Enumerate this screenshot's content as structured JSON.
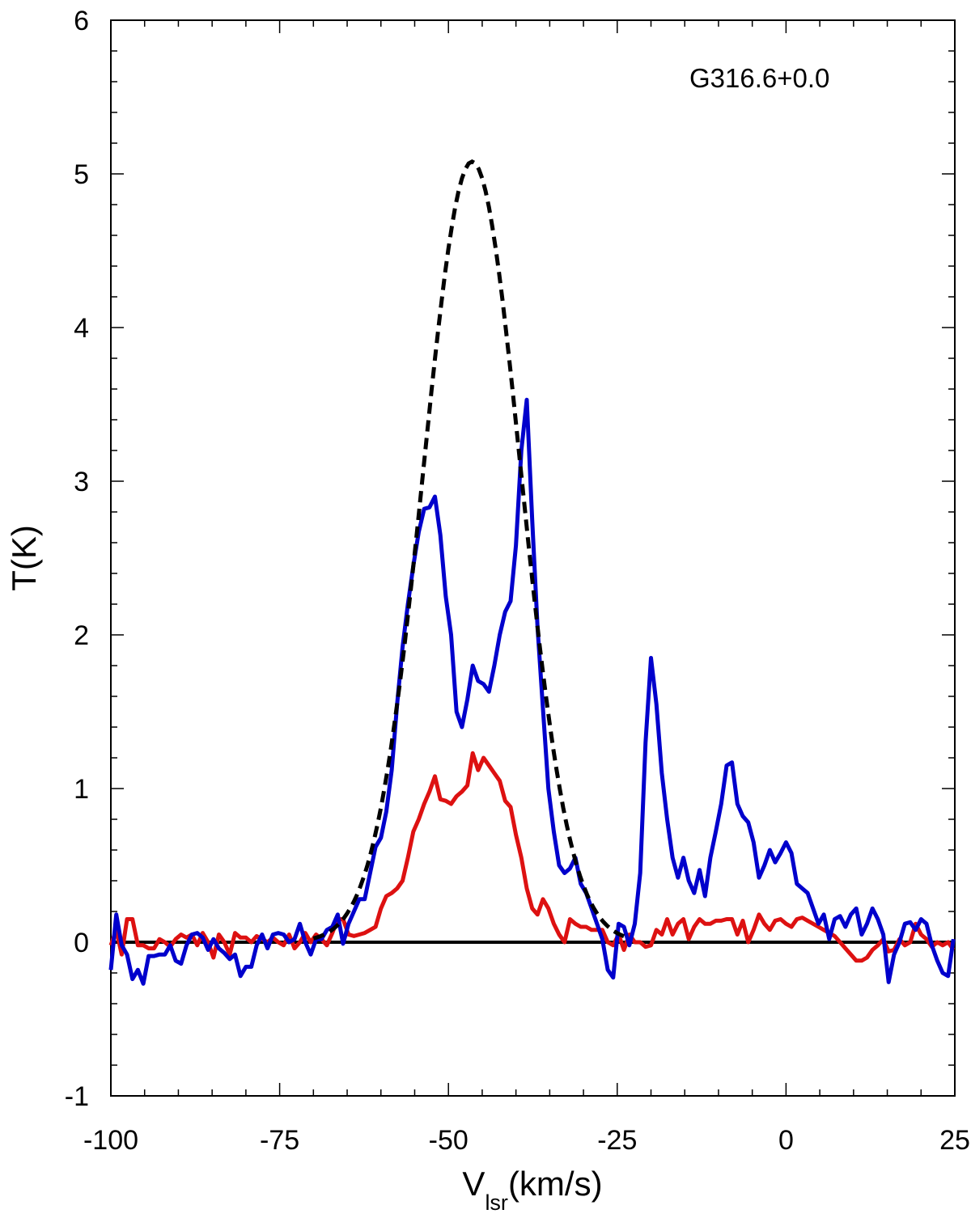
{
  "chart_data": {
    "type": "line",
    "annotation": "G316.6+0.0",
    "xlabel_main": "V",
    "xlabel_sub": "lsr",
    "xlabel_unit": "(km/s)",
    "ylabel": "T(K)",
    "xlim": [
      -100,
      25
    ],
    "ylim": [
      -1,
      6
    ],
    "x_ticks": [
      -100,
      -75,
      -50,
      -25,
      0,
      25
    ],
    "y_ticks": [
      -1,
      0,
      1,
      2,
      3,
      4,
      5,
      6
    ],
    "grid": false,
    "colors": {
      "blue": "#0000cc",
      "red": "#dd1111",
      "fit": "#000000",
      "baseline": "#000000"
    },
    "series": [
      {
        "style": "solid",
        "color": "#0000cc",
        "points": [
          [
            -100,
            -0.18
          ],
          [
            -99.2,
            0.18
          ],
          [
            -98.4,
            -0.02
          ],
          [
            -97.6,
            -0.08
          ],
          [
            -96.8,
            -0.24
          ],
          [
            -96,
            -0.18
          ],
          [
            -95.2,
            -0.27
          ],
          [
            -94.4,
            -0.09
          ],
          [
            -93.6,
            -0.09
          ],
          [
            -92.8,
            -0.08
          ],
          [
            -92,
            -0.08
          ],
          [
            -91.2,
            -0.02
          ],
          [
            -90.4,
            -0.12
          ],
          [
            -89.6,
            -0.14
          ],
          [
            -88.8,
            -0.02
          ],
          [
            -88,
            0.05
          ],
          [
            -87.2,
            0.06
          ],
          [
            -86.4,
            0.03
          ],
          [
            -85.6,
            -0.05
          ],
          [
            -84.8,
            0.02
          ],
          [
            -84,
            -0.04
          ],
          [
            -83.2,
            -0.07
          ],
          [
            -82.4,
            -0.11
          ],
          [
            -81.6,
            -0.08
          ],
          [
            -80.8,
            -0.22
          ],
          [
            -80,
            -0.16
          ],
          [
            -79.2,
            -0.16
          ],
          [
            -78.4,
            -0.02
          ],
          [
            -77.6,
            0.05
          ],
          [
            -76.8,
            -0.04
          ],
          [
            -76,
            0.05
          ],
          [
            -75.2,
            0.06
          ],
          [
            -74.4,
            0.05
          ],
          [
            -73.6,
            0.0
          ],
          [
            -72.8,
            0.02
          ],
          [
            -72,
            0.12
          ],
          [
            -71.2,
            0.0
          ],
          [
            -70.4,
            -0.08
          ],
          [
            -69.6,
            0.02
          ],
          [
            -68.8,
            0.02
          ],
          [
            -68,
            0.08
          ],
          [
            -67.2,
            0.1
          ],
          [
            -66.4,
            0.18
          ],
          [
            -65.6,
            -0.01
          ],
          [
            -64.8,
            0.12
          ],
          [
            -64,
            0.2
          ],
          [
            -63.2,
            0.28
          ],
          [
            -62.4,
            0.28
          ],
          [
            -61.6,
            0.45
          ],
          [
            -60.8,
            0.62
          ],
          [
            -60,
            0.68
          ],
          [
            -59.2,
            0.85
          ],
          [
            -58.4,
            1.12
          ],
          [
            -57.6,
            1.55
          ],
          [
            -56.8,
            1.92
          ],
          [
            -56,
            2.2
          ],
          [
            -55.2,
            2.45
          ],
          [
            -54.4,
            2.67
          ],
          [
            -53.6,
            2.82
          ],
          [
            -52.8,
            2.83
          ],
          [
            -52,
            2.9
          ],
          [
            -51.2,
            2.65
          ],
          [
            -50.4,
            2.25
          ],
          [
            -49.6,
            2.0
          ],
          [
            -48.8,
            1.5
          ],
          [
            -48,
            1.4
          ],
          [
            -47.2,
            1.58
          ],
          [
            -46.4,
            1.8
          ],
          [
            -45.6,
            1.7
          ],
          [
            -44.8,
            1.68
          ],
          [
            -44,
            1.63
          ],
          [
            -43.2,
            1.8
          ],
          [
            -42.4,
            2.0
          ],
          [
            -41.6,
            2.15
          ],
          [
            -40.8,
            2.22
          ],
          [
            -40,
            2.58
          ],
          [
            -39.2,
            3.2
          ],
          [
            -38.4,
            3.53
          ],
          [
            -37.6,
            2.75
          ],
          [
            -36.8,
            2.05
          ],
          [
            -36,
            1.52
          ],
          [
            -35.2,
            1.0
          ],
          [
            -34.4,
            0.72
          ],
          [
            -33.6,
            0.5
          ],
          [
            -32.8,
            0.45
          ],
          [
            -32,
            0.48
          ],
          [
            -31.2,
            0.55
          ],
          [
            -30.4,
            0.38
          ],
          [
            -29.6,
            0.32
          ],
          [
            -28.8,
            0.22
          ],
          [
            -28,
            0.12
          ],
          [
            -27.2,
            0.02
          ],
          [
            -26.4,
            -0.18
          ],
          [
            -25.6,
            -0.23
          ],
          [
            -24.8,
            0.12
          ],
          [
            -24,
            0.1
          ],
          [
            -23.2,
            -0.02
          ],
          [
            -22.4,
            0.12
          ],
          [
            -21.6,
            0.45
          ],
          [
            -20.8,
            1.3
          ],
          [
            -20,
            1.85
          ],
          [
            -19.2,
            1.55
          ],
          [
            -18.4,
            1.1
          ],
          [
            -17.6,
            0.8
          ],
          [
            -16.8,
            0.55
          ],
          [
            -16,
            0.42
          ],
          [
            -15.2,
            0.55
          ],
          [
            -14.4,
            0.4
          ],
          [
            -13.6,
            0.32
          ],
          [
            -12.8,
            0.47
          ],
          [
            -12,
            0.3
          ],
          [
            -11.2,
            0.55
          ],
          [
            -10.4,
            0.72
          ],
          [
            -9.6,
            0.9
          ],
          [
            -8.8,
            1.15
          ],
          [
            -8,
            1.17
          ],
          [
            -7.2,
            0.9
          ],
          [
            -6.4,
            0.82
          ],
          [
            -5.6,
            0.78
          ],
          [
            -4.8,
            0.65
          ],
          [
            -4,
            0.42
          ],
          [
            -3.2,
            0.5
          ],
          [
            -2.4,
            0.6
          ],
          [
            -1.6,
            0.52
          ],
          [
            -0.8,
            0.58
          ],
          [
            0,
            0.65
          ],
          [
            0.8,
            0.58
          ],
          [
            1.6,
            0.38
          ],
          [
            2.4,
            0.35
          ],
          [
            3.2,
            0.32
          ],
          [
            4,
            0.22
          ],
          [
            4.8,
            0.12
          ],
          [
            5.6,
            0.18
          ],
          [
            6.4,
            0.02
          ],
          [
            7.2,
            0.15
          ],
          [
            8,
            0.17
          ],
          [
            8.8,
            0.1
          ],
          [
            9.6,
            0.18
          ],
          [
            10.4,
            0.22
          ],
          [
            11.2,
            0.05
          ],
          [
            12,
            0.12
          ],
          [
            12.8,
            0.22
          ],
          [
            13.6,
            0.15
          ],
          [
            14.4,
            0.05
          ],
          [
            15.2,
            -0.26
          ],
          [
            16,
            -0.08
          ],
          [
            16.8,
            0.0
          ],
          [
            17.6,
            0.12
          ],
          [
            18.4,
            0.13
          ],
          [
            19.2,
            0.08
          ],
          [
            20,
            0.15
          ],
          [
            20.8,
            0.12
          ],
          [
            21.6,
            -0.02
          ],
          [
            22.4,
            -0.12
          ],
          [
            23.2,
            -0.2
          ],
          [
            24,
            -0.22
          ],
          [
            24.8,
            0.02
          ]
        ]
      },
      {
        "style": "solid",
        "color": "#dd1111",
        "points": [
          [
            -100,
            -0.02
          ],
          [
            -99.2,
            0.08
          ],
          [
            -98.4,
            -0.08
          ],
          [
            -97.6,
            0.15
          ],
          [
            -96.8,
            0.15
          ],
          [
            -96,
            -0.02
          ],
          [
            -95.2,
            -0.02
          ],
          [
            -94.4,
            -0.04
          ],
          [
            -93.6,
            -0.04
          ],
          [
            -92.8,
            0.02
          ],
          [
            -92,
            0.0
          ],
          [
            -91.2,
            -0.03
          ],
          [
            -90.4,
            0.02
          ],
          [
            -89.6,
            0.05
          ],
          [
            -88.8,
            0.03
          ],
          [
            -88,
            0.05
          ],
          [
            -87.2,
            -0.02
          ],
          [
            -86.4,
            0.06
          ],
          [
            -85.6,
            0.0
          ],
          [
            -84.8,
            -0.1
          ],
          [
            -84,
            0.05
          ],
          [
            -83.2,
            0.0
          ],
          [
            -82.4,
            -0.08
          ],
          [
            -81.6,
            0.06
          ],
          [
            -80.8,
            0.03
          ],
          [
            -80,
            0.03
          ],
          [
            -79.2,
            0.0
          ],
          [
            -78.4,
            0.04
          ],
          [
            -77.6,
            0.02
          ],
          [
            -76.8,
            0.0
          ],
          [
            -76,
            0.03
          ],
          [
            -75.2,
            0.0
          ],
          [
            -74.4,
            -0.02
          ],
          [
            -73.6,
            0.05
          ],
          [
            -72.8,
            -0.04
          ],
          [
            -72,
            0.0
          ],
          [
            -71.2,
            0.06
          ],
          [
            -70.4,
            0.0
          ],
          [
            -69.6,
            0.05
          ],
          [
            -68.8,
            0.02
          ],
          [
            -68,
            -0.02
          ],
          [
            -67.2,
            0.06
          ],
          [
            -66.4,
            0.15
          ],
          [
            -65.6,
            0.15
          ],
          [
            -64.8,
            0.05
          ],
          [
            -64,
            0.04
          ],
          [
            -63.2,
            0.05
          ],
          [
            -62.4,
            0.06
          ],
          [
            -61.6,
            0.08
          ],
          [
            -60.8,
            0.1
          ],
          [
            -60,
            0.22
          ],
          [
            -59.2,
            0.3
          ],
          [
            -58.4,
            0.32
          ],
          [
            -57.6,
            0.35
          ],
          [
            -56.8,
            0.4
          ],
          [
            -56,
            0.55
          ],
          [
            -55.2,
            0.72
          ],
          [
            -54.4,
            0.8
          ],
          [
            -53.6,
            0.9
          ],
          [
            -52.8,
            0.98
          ],
          [
            -52,
            1.08
          ],
          [
            -51.2,
            0.93
          ],
          [
            -50.4,
            0.92
          ],
          [
            -49.6,
            0.9
          ],
          [
            -48.8,
            0.95
          ],
          [
            -48,
            0.98
          ],
          [
            -47.2,
            1.02
          ],
          [
            -46.4,
            1.23
          ],
          [
            -45.6,
            1.12
          ],
          [
            -44.8,
            1.2
          ],
          [
            -44,
            1.15
          ],
          [
            -43.2,
            1.1
          ],
          [
            -42.4,
            1.05
          ],
          [
            -41.6,
            0.92
          ],
          [
            -40.8,
            0.88
          ],
          [
            -40,
            0.7
          ],
          [
            -39.2,
            0.55
          ],
          [
            -38.4,
            0.35
          ],
          [
            -37.6,
            0.22
          ],
          [
            -36.8,
            0.18
          ],
          [
            -36,
            0.28
          ],
          [
            -35.2,
            0.22
          ],
          [
            -34.4,
            0.12
          ],
          [
            -33.6,
            0.05
          ],
          [
            -32.8,
            0.0
          ],
          [
            -32,
            0.15
          ],
          [
            -31.2,
            0.12
          ],
          [
            -30.4,
            0.1
          ],
          [
            -29.6,
            0.1
          ],
          [
            -28.8,
            0.08
          ],
          [
            -28,
            0.08
          ],
          [
            -27.2,
            0.08
          ],
          [
            -26.4,
            0.0
          ],
          [
            -25.6,
            -0.02
          ],
          [
            -24.8,
            0.05
          ],
          [
            -24,
            -0.05
          ],
          [
            -23.2,
            0.05
          ],
          [
            -22.4,
            0.0
          ],
          [
            -21.6,
            0.0
          ],
          [
            -20.8,
            -0.03
          ],
          [
            -20,
            -0.02
          ],
          [
            -19.2,
            0.08
          ],
          [
            -18.4,
            0.05
          ],
          [
            -17.6,
            0.15
          ],
          [
            -16.8,
            0.05
          ],
          [
            -16,
            0.12
          ],
          [
            -15.2,
            0.15
          ],
          [
            -14.4,
            0.02
          ],
          [
            -13.6,
            0.1
          ],
          [
            -12.8,
            0.15
          ],
          [
            -12,
            0.12
          ],
          [
            -11.2,
            0.12
          ],
          [
            -10.4,
            0.14
          ],
          [
            -9.6,
            0.14
          ],
          [
            -8.8,
            0.15
          ],
          [
            -8,
            0.15
          ],
          [
            -7.2,
            0.05
          ],
          [
            -6.4,
            0.14
          ],
          [
            -5.6,
            0.0
          ],
          [
            -4.8,
            0.08
          ],
          [
            -4,
            0.18
          ],
          [
            -3.2,
            0.12
          ],
          [
            -2.4,
            0.08
          ],
          [
            -1.6,
            0.14
          ],
          [
            -0.8,
            0.15
          ],
          [
            0,
            0.12
          ],
          [
            0.8,
            0.1
          ],
          [
            1.6,
            0.15
          ],
          [
            2.4,
            0.16
          ],
          [
            3.2,
            0.14
          ],
          [
            4,
            0.12
          ],
          [
            4.8,
            0.1
          ],
          [
            5.6,
            0.08
          ],
          [
            6.4,
            0.06
          ],
          [
            7.2,
            0.04
          ],
          [
            8,
            0.0
          ],
          [
            8.8,
            -0.04
          ],
          [
            9.6,
            -0.08
          ],
          [
            10.4,
            -0.12
          ],
          [
            11.2,
            -0.12
          ],
          [
            12,
            -0.1
          ],
          [
            12.8,
            -0.05
          ],
          [
            13.6,
            -0.02
          ],
          [
            14.4,
            0.02
          ],
          [
            15.2,
            -0.06
          ],
          [
            16,
            -0.05
          ],
          [
            16.8,
            0.02
          ],
          [
            17.6,
            -0.02
          ],
          [
            18.4,
            0.0
          ],
          [
            19.2,
            0.12
          ],
          [
            20,
            0.05
          ],
          [
            20.8,
            0.02
          ],
          [
            21.6,
            -0.03
          ],
          [
            22.4,
            0.0
          ],
          [
            23.2,
            -0.02
          ],
          [
            24,
            0.0
          ],
          [
            24.8,
            -0.05
          ]
        ]
      },
      {
        "style": "dashed",
        "color": "#000000",
        "gaussian": {
          "amplitude": 5.08,
          "center": -46.5,
          "sigma": 7.2
        }
      }
    ]
  }
}
